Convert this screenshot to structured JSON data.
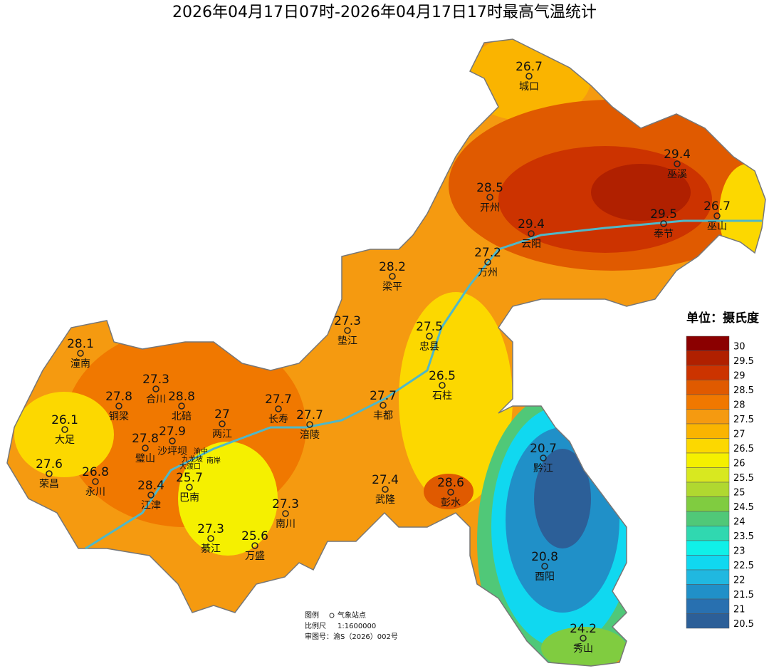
{
  "title": "2026年04月17日07时-2026年04月17日17时最高气温统计",
  "stations": [
    {
      "name": "城口",
      "value": 26.7
    },
    {
      "name": "巫溪",
      "value": 29.4
    },
    {
      "name": "开州",
      "value": 28.5
    },
    {
      "name": "奉节",
      "value": 29.5
    },
    {
      "name": "巫山",
      "value": 26.7
    },
    {
      "name": "云阳",
      "value": 29.4
    },
    {
      "name": "梁平",
      "value": 28.2
    },
    {
      "name": "万州",
      "value": 27.2
    },
    {
      "name": "垫江",
      "value": 27.3
    },
    {
      "name": "忠县",
      "value": 27.5
    },
    {
      "name": "潼南",
      "value": 28.1
    },
    {
      "name": "合川",
      "value": 27.3
    },
    {
      "name": "石柱",
      "value": 26.5
    },
    {
      "name": "铜梁",
      "value": 27.8
    },
    {
      "name": "北碚",
      "value": 28.8
    },
    {
      "name": "两江",
      "value": 27
    },
    {
      "name": "长寿",
      "value": 27.7
    },
    {
      "name": "丰都",
      "value": 27.7
    },
    {
      "name": "涪陵",
      "value": 27.7
    },
    {
      "name": "大足",
      "value": 26.1
    },
    {
      "name": "璧山",
      "value": 27.8
    },
    {
      "name": "沙坪坝",
      "value": 27.9
    },
    {
      "name": "荣昌",
      "value": 27.6
    },
    {
      "name": "永川",
      "value": 26.8
    },
    {
      "name": "巴南",
      "value": 25.7
    },
    {
      "name": "江津",
      "value": 28.4
    },
    {
      "name": "武隆",
      "value": 27.4
    },
    {
      "name": "彭水",
      "value": 28.6
    },
    {
      "name": "黔江",
      "value": 20.7
    },
    {
      "name": "南川",
      "value": 27.3
    },
    {
      "name": "綦江",
      "value": 27.3
    },
    {
      "name": "万盛",
      "value": 25.6
    },
    {
      "name": "酉阳",
      "value": 20.8
    },
    {
      "name": "秀山",
      "value": 24.2
    }
  ],
  "minor_labels": [
    "渝中",
    "九龙坡",
    "大渡口",
    "南岸"
  ],
  "legend": {
    "title": "单位：摄氏度",
    "items": [
      {
        "value": 30,
        "color": "#8b0000"
      },
      {
        "value": 29.5,
        "color": "#b02000"
      },
      {
        "value": 29,
        "color": "#cc3300"
      },
      {
        "value": 28.5,
        "color": "#e05a00"
      },
      {
        "value": 28,
        "color": "#f07800"
      },
      {
        "value": 27.5,
        "color": "#f59a10"
      },
      {
        "value": 27,
        "color": "#fab400"
      },
      {
        "value": 26.5,
        "color": "#fcd800"
      },
      {
        "value": 26,
        "color": "#f5f000"
      },
      {
        "value": 25.5,
        "color": "#d8e820"
      },
      {
        "value": 25,
        "color": "#b0d830"
      },
      {
        "value": 24.5,
        "color": "#80cc40"
      },
      {
        "value": 24,
        "color": "#50c878"
      },
      {
        "value": 23.5,
        "color": "#30d8b0"
      },
      {
        "value": 23,
        "color": "#10f0e8"
      },
      {
        "value": 22.5,
        "color": "#10d8f0"
      },
      {
        "value": 22,
        "color": "#20b8e0"
      },
      {
        "value": 21.5,
        "color": "#2090c8"
      },
      {
        "value": 21,
        "color": "#2870b0"
      },
      {
        "value": 20.5,
        "color": "#2c5f98"
      }
    ]
  },
  "notes": {
    "legend_label": "图例",
    "station_label": "气象站点",
    "scale_label": "比例尺",
    "scale": "1:1600000",
    "approval": "审图号：渝S（2026）002号"
  }
}
